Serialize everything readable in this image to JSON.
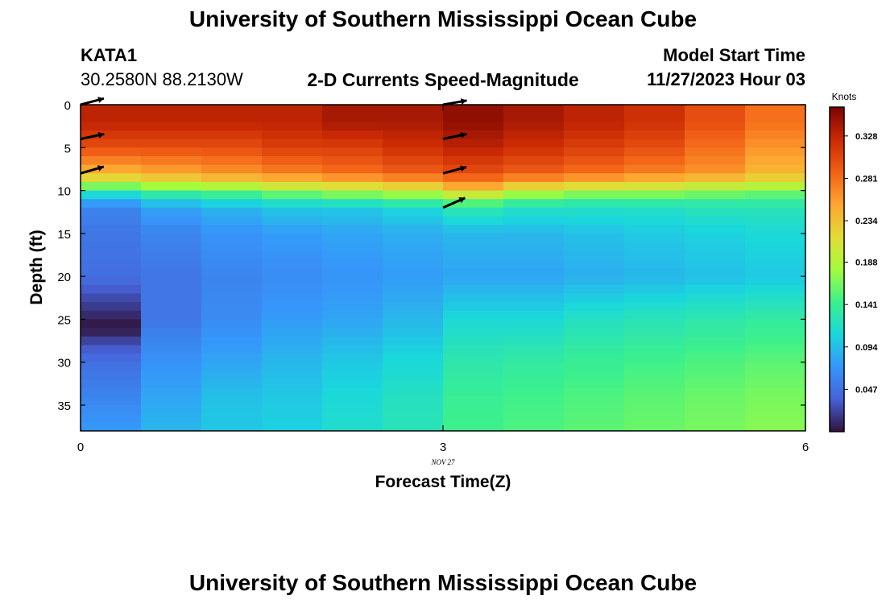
{
  "header": {
    "title": "University of Southern Mississippi Ocean Cube",
    "station": "KATA1",
    "coords": "30.2580N  88.2130W",
    "model_start_label": "Model Start Time",
    "model_start_value": "11/27/2023 Hour 03",
    "footer_title": "University of Southern Mississippi Ocean Cube"
  },
  "chart_data": {
    "type": "heatmap",
    "title": "2-D Currents Speed-Magnitude",
    "xlabel": "Forecast Time(Z)",
    "ylabel": "Depth (ft)",
    "date_label": "NOV 27",
    "xlim": [
      0,
      6
    ],
    "ylim": [
      0,
      38
    ],
    "x_ticks": [
      "0",
      "3",
      "6"
    ],
    "y_ticks": [
      "0",
      "5",
      "10",
      "15",
      "20",
      "25",
      "30",
      "35"
    ],
    "colorbar": {
      "unit_label": "Knots",
      "range": [
        0.0,
        0.36
      ],
      "tick_values": [
        0.047,
        0.094,
        0.141,
        0.188,
        0.234,
        0.281,
        0.328
      ],
      "tick_labels": [
        "0.047",
        "0.094",
        "0.141",
        "0.188",
        "0.234",
        "0.281",
        "0.328"
      ]
    },
    "time_columns": [
      0,
      0.5,
      1,
      1.5,
      2,
      2.5,
      3,
      3.5,
      4,
      4.5,
      5,
      5.5,
      6
    ],
    "depth_profiles": [
      {
        "depth": [
          0,
          2,
          5,
          8,
          9,
          10,
          11,
          12,
          15,
          20,
          22,
          24,
          26,
          27,
          28,
          30,
          34,
          38
        ],
        "speed": [
          0.33,
          0.33,
          0.3,
          0.24,
          0.2,
          0.13,
          0.09,
          0.06,
          0.05,
          0.045,
          0.03,
          0.015,
          0.0,
          0.015,
          0.03,
          0.045,
          0.06,
          0.075
        ]
      },
      {
        "depth": [
          0,
          2,
          5,
          8,
          9,
          10,
          11,
          12,
          15,
          20,
          25,
          30,
          34,
          38
        ],
        "speed": [
          0.33,
          0.33,
          0.3,
          0.25,
          0.21,
          0.15,
          0.11,
          0.08,
          0.06,
          0.05,
          0.05,
          0.07,
          0.08,
          0.09
        ]
      },
      {
        "depth": [
          0,
          2,
          5,
          8,
          9,
          10,
          11,
          12,
          15,
          20,
          25,
          30,
          34,
          38
        ],
        "speed": [
          0.33,
          0.33,
          0.3,
          0.26,
          0.22,
          0.16,
          0.12,
          0.09,
          0.07,
          0.06,
          0.065,
          0.08,
          0.095,
          0.1
        ]
      },
      {
        "depth": [
          0,
          2,
          5,
          8,
          9,
          10,
          11,
          12,
          15,
          20,
          25,
          30,
          34,
          38
        ],
        "speed": [
          0.33,
          0.33,
          0.31,
          0.27,
          0.23,
          0.18,
          0.13,
          0.1,
          0.075,
          0.065,
          0.075,
          0.09,
          0.1,
          0.105
        ]
      },
      {
        "depth": [
          0,
          2,
          5,
          8,
          9,
          10,
          11,
          12,
          15,
          20,
          25,
          30,
          34,
          38
        ],
        "speed": [
          0.34,
          0.34,
          0.31,
          0.28,
          0.24,
          0.19,
          0.14,
          0.1,
          0.08,
          0.07,
          0.08,
          0.1,
          0.11,
          0.115
        ]
      },
      {
        "depth": [
          0,
          2,
          5,
          8,
          9,
          10,
          11,
          12,
          15,
          20,
          25,
          30,
          34,
          38
        ],
        "speed": [
          0.34,
          0.34,
          0.32,
          0.29,
          0.25,
          0.2,
          0.15,
          0.11,
          0.085,
          0.075,
          0.09,
          0.11,
          0.12,
          0.125
        ]
      },
      {
        "depth": [
          0,
          2,
          5,
          8,
          9,
          10,
          11,
          12,
          15,
          20,
          25,
          30,
          34,
          38
        ],
        "speed": [
          0.35,
          0.35,
          0.33,
          0.3,
          0.27,
          0.23,
          0.17,
          0.13,
          0.09,
          0.08,
          0.11,
          0.13,
          0.14,
          0.145
        ]
      },
      {
        "depth": [
          0,
          2,
          5,
          8,
          9,
          10,
          11,
          12,
          15,
          20,
          25,
          30,
          34,
          38
        ],
        "speed": [
          0.34,
          0.34,
          0.32,
          0.29,
          0.25,
          0.2,
          0.15,
          0.12,
          0.09,
          0.08,
          0.11,
          0.135,
          0.145,
          0.15
        ]
      },
      {
        "depth": [
          0,
          2,
          5,
          8,
          9,
          10,
          11,
          12,
          15,
          20,
          25,
          30,
          34,
          38
        ],
        "speed": [
          0.33,
          0.33,
          0.31,
          0.28,
          0.24,
          0.19,
          0.14,
          0.12,
          0.095,
          0.085,
          0.12,
          0.14,
          0.15,
          0.155
        ]
      },
      {
        "depth": [
          0,
          2,
          5,
          8,
          9,
          10,
          11,
          12,
          15,
          20,
          25,
          30,
          34,
          38
        ],
        "speed": [
          0.32,
          0.32,
          0.3,
          0.27,
          0.23,
          0.19,
          0.14,
          0.12,
          0.1,
          0.09,
          0.125,
          0.145,
          0.155,
          0.16
        ]
      },
      {
        "depth": [
          0,
          2,
          5,
          8,
          9,
          10,
          11,
          12,
          15,
          20,
          25,
          30,
          34,
          38
        ],
        "speed": [
          0.3,
          0.3,
          0.28,
          0.26,
          0.22,
          0.18,
          0.14,
          0.125,
          0.105,
          0.095,
          0.13,
          0.15,
          0.16,
          0.165
        ]
      },
      {
        "depth": [
          0,
          2,
          5,
          8,
          9,
          10,
          11,
          12,
          15,
          20,
          25,
          30,
          34,
          38
        ],
        "speed": [
          0.28,
          0.28,
          0.26,
          0.24,
          0.21,
          0.17,
          0.14,
          0.125,
          0.11,
          0.1,
          0.135,
          0.155,
          0.165,
          0.17
        ]
      },
      {
        "depth": [
          0,
          2,
          5,
          8,
          9,
          10,
          11,
          12,
          15,
          20,
          25,
          30,
          34,
          38
        ],
        "speed": [
          0.25,
          0.25,
          0.24,
          0.22,
          0.2,
          0.17,
          0.145,
          0.13,
          0.115,
          0.105,
          0.14,
          0.16,
          0.17,
          0.175
        ]
      }
    ],
    "vector_arrows": [
      {
        "time": 0,
        "depth": 0,
        "angle_deg": 15
      },
      {
        "time": 0,
        "depth": 4,
        "angle_deg": 12
      },
      {
        "time": 0,
        "depth": 8,
        "angle_deg": 16
      },
      {
        "time": 3,
        "depth": 0,
        "angle_deg": 10
      },
      {
        "time": 3,
        "depth": 4,
        "angle_deg": 12
      },
      {
        "time": 3,
        "depth": 8,
        "angle_deg": 15
      },
      {
        "time": 3,
        "depth": 12,
        "angle_deg": 24
      }
    ]
  }
}
